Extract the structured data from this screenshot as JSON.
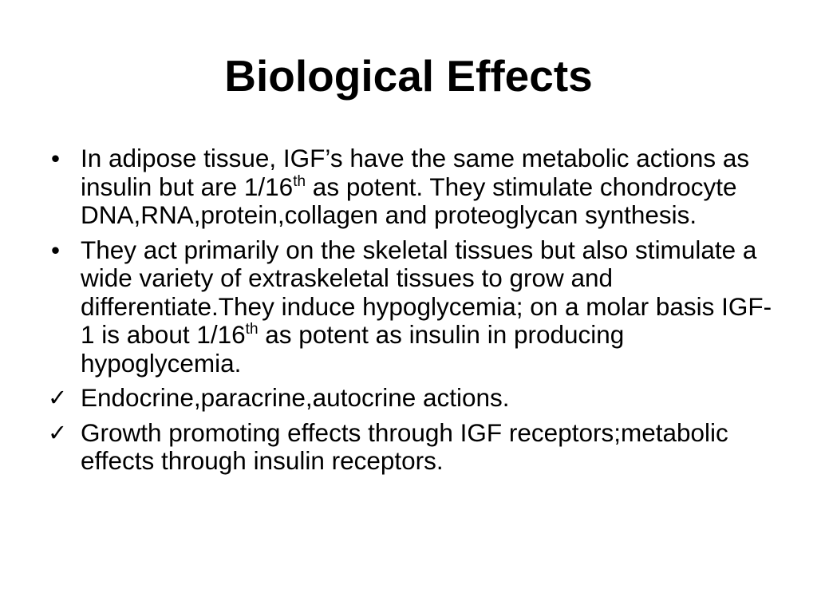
{
  "slide": {
    "title": "Biological Effects",
    "items": [
      {
        "marker": "•",
        "before": "In adipose tissue, IGF’s have the same metabolic actions as insulin but are 1/16",
        "sup": "th",
        "after": " as potent. They stimulate chondrocyte DNA,RNA,protein,collagen and proteoglycan synthesis."
      },
      {
        "marker": "•",
        "before": "They act primarily on the skeletal tissues but also stimulate a wide variety of extraskeletal tissues to grow and differentiate.They induce hypoglycemia; on a molar basis IGF-1 is about 1/16",
        "sup": "th",
        "after": " as potent as insulin in producing hypoglycemia."
      },
      {
        "marker": "✓",
        "text": "Endocrine,paracrine,autocrine actions."
      },
      {
        "marker": "✓",
        "text": "Growth promoting effects through IGF receptors;metabolic effects through insulin receptors."
      }
    ]
  }
}
